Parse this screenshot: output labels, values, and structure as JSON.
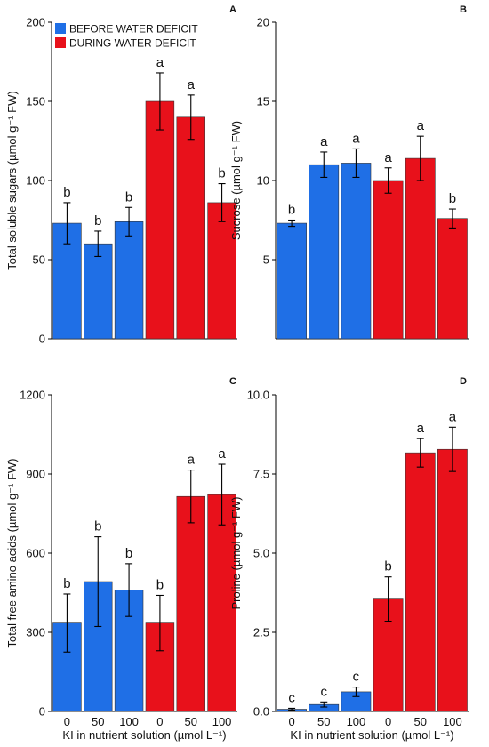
{
  "legend": {
    "before_label": "BEFORE WATER DEFICIT",
    "during_label": "DURING WATER DEFICIT",
    "before_color": "#1f6fe6",
    "during_color": "#e8111b"
  },
  "chart_data": [
    {
      "panel": "A",
      "type": "bar",
      "ylabel": "Total soluble sugars (µmol  g⁻¹ FW)",
      "ylim": [
        0,
        200
      ],
      "yticks": [
        0,
        50,
        100,
        150,
        200
      ],
      "yticklabels": [
        "0",
        "50",
        "100",
        "150",
        "200"
      ],
      "xlabel": "",
      "xticklabels": [
        "",
        "",
        "",
        "",
        "",
        ""
      ],
      "groups": [
        "before",
        "before",
        "before",
        "during",
        "during",
        "during"
      ],
      "values": [
        73,
        60,
        74,
        150,
        140,
        86
      ],
      "errors": [
        13,
        8,
        9,
        18,
        14,
        12
      ],
      "letters": [
        "b",
        "b",
        "b",
        "a",
        "a",
        "b"
      ],
      "legend": true
    },
    {
      "panel": "B",
      "type": "bar",
      "ylabel": "Sucrose (µmol g⁻¹ FW)",
      "ylim": [
        0,
        20
      ],
      "yticks": [
        5,
        10,
        15,
        20
      ],
      "yticklabels": [
        "5",
        "10",
        "15",
        "20"
      ],
      "xlabel": "",
      "xticklabels": [
        "",
        "",
        "",
        "",
        "",
        ""
      ],
      "groups": [
        "before",
        "before",
        "before",
        "during",
        "during",
        "during"
      ],
      "values": [
        7.3,
        11.0,
        11.1,
        10.0,
        11.4,
        7.6
      ],
      "errors": [
        0.2,
        0.8,
        0.9,
        0.8,
        1.4,
        0.6
      ],
      "letters": [
        "b",
        "a",
        "a",
        "a",
        "a",
        "b"
      ],
      "legend": false
    },
    {
      "panel": "C",
      "type": "bar",
      "ylabel": "Total free amino acids (µmol g⁻¹ FW)",
      "ylim": [
        0,
        1200
      ],
      "yticks": [
        0,
        300,
        600,
        900,
        1200
      ],
      "yticklabels": [
        "0",
        "300",
        "600",
        "900",
        "1200"
      ],
      "xlabel": "KI in nutrient solution (µmol L⁻¹)",
      "xticklabels": [
        "0",
        "50",
        "100",
        "0",
        "50",
        "100"
      ],
      "groups": [
        "before",
        "before",
        "before",
        "during",
        "during",
        "during"
      ],
      "values": [
        335,
        492,
        460,
        335,
        815,
        822
      ],
      "errors": [
        110,
        170,
        100,
        105,
        100,
        115
      ],
      "letters": [
        "b",
        "b",
        "b",
        "b",
        "a",
        "a"
      ],
      "legend": false
    },
    {
      "panel": "D",
      "type": "bar",
      "ylabel": "Proline (µmol g⁻¹ FW)",
      "ylim": [
        0,
        10
      ],
      "yticks": [
        0,
        2.5,
        5,
        7.5,
        10
      ],
      "yticklabels": [
        "0.0",
        "2.5",
        "5.0",
        "7.5",
        "10.0"
      ],
      "xlabel": "KI in nutrient solution (µmol L⁻¹)",
      "xticklabels": [
        "0",
        "50",
        "100",
        "0",
        "50",
        "100"
      ],
      "groups": [
        "before",
        "before",
        "before",
        "during",
        "during",
        "during"
      ],
      "values": [
        0.07,
        0.22,
        0.62,
        3.55,
        8.17,
        8.28
      ],
      "errors": [
        0.03,
        0.08,
        0.15,
        0.7,
        0.45,
        0.7
      ],
      "letters": [
        "c",
        "c",
        "c",
        "b",
        "a",
        "a"
      ],
      "legend": false
    }
  ]
}
